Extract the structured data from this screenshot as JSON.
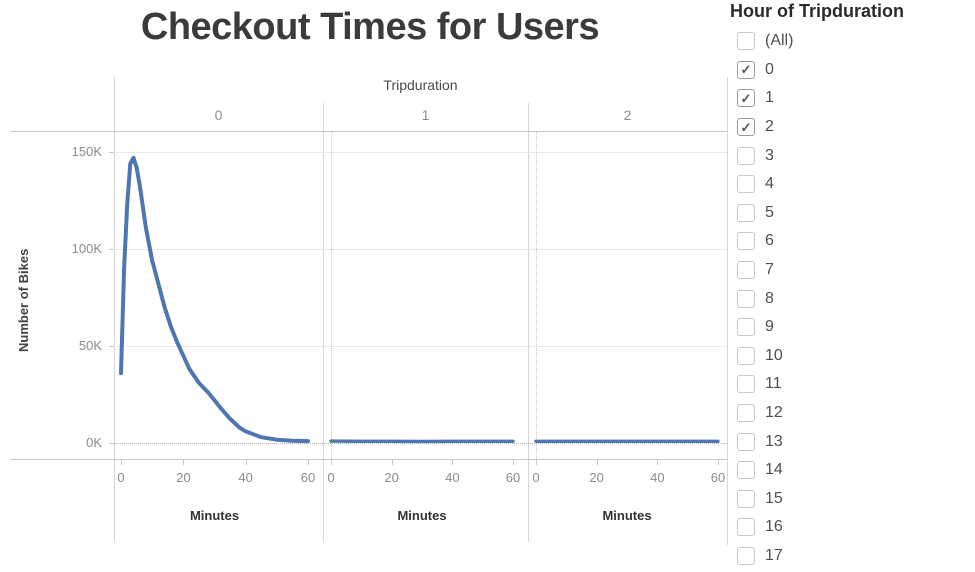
{
  "title": "Checkout Times for Users",
  "chart": {
    "facet_title": "Tripduration",
    "columns": [
      "0",
      "1",
      "2"
    ],
    "y_axis_title": "Number of Bikes",
    "x_axis_title": "Minutes",
    "y_ticks": [
      "150K",
      "100K",
      "50K",
      "0K"
    ],
    "x_ticks": [
      "0",
      "20",
      "40",
      "60"
    ]
  },
  "chart_data": {
    "type": "line",
    "title": "Checkout Times for Users",
    "facet_field": "Tripduration",
    "facets": [
      "0",
      "1",
      "2"
    ],
    "xlabel": "Minutes",
    "ylabel": "Number of Bikes",
    "xlim": [
      0,
      60
    ],
    "ylim": [
      0,
      155000
    ],
    "x_tick_values": [
      0,
      20,
      40,
      60
    ],
    "y_tick_values": [
      150000,
      100000,
      50000,
      0
    ],
    "grid": "horizontal-solid, zero-lines-dotted",
    "legend": "none",
    "line_color": "#4e76b1",
    "series": [
      {
        "name": "Tripduration 0",
        "facet": "0",
        "x": [
          0,
          1,
          2,
          3,
          4,
          5,
          6,
          7,
          8,
          10,
          12,
          14,
          16,
          18,
          20,
          22,
          25,
          28,
          30,
          32,
          35,
          38,
          40,
          45,
          50,
          55,
          60
        ],
        "y": [
          36000,
          90000,
          123000,
          144000,
          147000,
          142000,
          133000,
          122000,
          111000,
          94000,
          82000,
          70000,
          60000,
          52000,
          45000,
          38000,
          31000,
          26000,
          22000,
          18000,
          12500,
          8000,
          6000,
          3000,
          1700,
          1200,
          1000
        ]
      },
      {
        "name": "Tripduration 1",
        "facet": "1",
        "x": [
          0,
          10,
          20,
          30,
          40,
          50,
          60
        ],
        "y": [
          1000,
          900,
          900,
          800,
          900,
          900,
          900
        ]
      },
      {
        "name": "Tripduration 2",
        "facet": "2",
        "x": [
          0,
          10,
          20,
          30,
          40,
          50,
          60
        ],
        "y": [
          900,
          900,
          900,
          900,
          900,
          900,
          900
        ]
      }
    ]
  },
  "filter": {
    "title": "Hour of Tripduration",
    "items": [
      {
        "label": "(All)",
        "checked": false
      },
      {
        "label": "0",
        "checked": true
      },
      {
        "label": "1",
        "checked": true
      },
      {
        "label": "2",
        "checked": true
      },
      {
        "label": "3",
        "checked": false
      },
      {
        "label": "4",
        "checked": false
      },
      {
        "label": "5",
        "checked": false
      },
      {
        "label": "6",
        "checked": false
      },
      {
        "label": "7",
        "checked": false
      },
      {
        "label": "8",
        "checked": false
      },
      {
        "label": "9",
        "checked": false
      },
      {
        "label": "10",
        "checked": false
      },
      {
        "label": "11",
        "checked": false
      },
      {
        "label": "12",
        "checked": false
      },
      {
        "label": "13",
        "checked": false
      },
      {
        "label": "14",
        "checked": false
      },
      {
        "label": "15",
        "checked": false
      },
      {
        "label": "16",
        "checked": false
      },
      {
        "label": "17",
        "checked": false
      }
    ]
  },
  "icons": {
    "checkmark": "✓"
  },
  "colors": {
    "line": "#4e76b1",
    "checkmark": "#555555",
    "border": "#d6d6d6",
    "axis_line": "#c9c9c9",
    "gridline": "#eaeaea",
    "tick_text": "#8c8c8c",
    "label_text": "#333333"
  }
}
